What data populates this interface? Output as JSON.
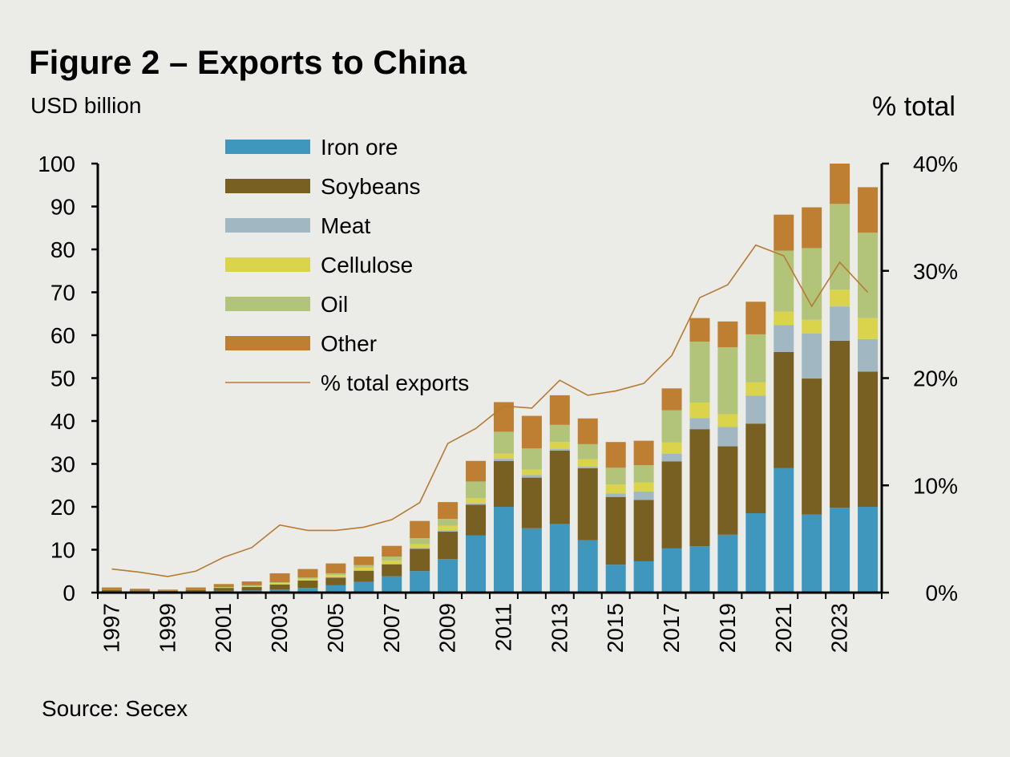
{
  "title": "Figure 2 – Exports to China",
  "source": "Source: Secex",
  "chart_data": {
    "type": "bar",
    "stacked": true,
    "title": "Figure 2 – Exports to China",
    "y_left_label": "USD billion",
    "y_right_label": "% total",
    "ylim": [
      0,
      100
    ],
    "y_ticks": [
      0,
      10,
      20,
      30,
      40,
      50,
      60,
      70,
      80,
      90,
      100
    ],
    "y2lim": [
      0,
      40
    ],
    "y2_ticks": [
      "0%",
      "10%",
      "20%",
      "30%",
      "40%"
    ],
    "y2_tick_values": [
      0,
      10,
      20,
      30,
      40
    ],
    "x": [
      1997,
      1998,
      1999,
      2000,
      2001,
      2002,
      2003,
      2004,
      2005,
      2006,
      2007,
      2008,
      2009,
      2010,
      2011,
      2012,
      2013,
      2014,
      2015,
      2016,
      2017,
      2018,
      2019,
      2020,
      2021,
      2022,
      2023,
      2024
    ],
    "x_tick_labels": [
      "1997",
      "1999",
      "2001",
      "2003",
      "2005",
      "2007",
      "2009",
      "2011",
      "2013",
      "2015",
      "2017",
      "2019",
      "2021",
      "2023"
    ],
    "legend_position": "top-left",
    "series": [
      {
        "name": "Iron ore",
        "color": "#3f97bd",
        "values": [
          0.3,
          0.3,
          0.2,
          0.3,
          0.4,
          0.5,
          0.7,
          1.1,
          1.7,
          2.5,
          3.8,
          5.0,
          7.8,
          13.3,
          20.0,
          15.0,
          16.0,
          12.2,
          6.5,
          7.3,
          10.3,
          10.8,
          13.5,
          18.5,
          29.0,
          18.2,
          19.8,
          20.0
        ]
      },
      {
        "name": "Soybeans",
        "color": "#776021",
        "values": [
          0.3,
          0.2,
          0.2,
          0.3,
          0.7,
          0.8,
          1.2,
          1.7,
          1.8,
          2.6,
          2.8,
          5.2,
          6.4,
          7.2,
          10.7,
          11.8,
          17.1,
          16.8,
          15.8,
          14.3,
          20.3,
          27.3,
          20.6,
          20.9,
          27.1,
          31.7,
          38.9,
          31.5
        ]
      },
      {
        "name": "Meat",
        "color": "#a1b8c3",
        "values": [
          0,
          0,
          0,
          0,
          0,
          0,
          0,
          0,
          0.1,
          0.1,
          0.1,
          0.2,
          0.3,
          0.3,
          0.5,
          0.6,
          0.4,
          0.4,
          0.8,
          2.0,
          1.8,
          2.6,
          4.5,
          6.5,
          6.3,
          10.5,
          8.0,
          7.6
        ]
      },
      {
        "name": "Cellulose",
        "color": "#dad34c",
        "values": [
          0,
          0,
          0,
          0,
          0.1,
          0.2,
          0.3,
          0.4,
          0.5,
          0.6,
          0.8,
          0.9,
          1.1,
          1.2,
          1.2,
          1.3,
          1.6,
          1.7,
          2.1,
          2.1,
          2.6,
          3.6,
          3.0,
          3.1,
          3.1,
          3.2,
          3.9,
          4.9
        ]
      },
      {
        "name": "Oil",
        "color": "#b1c47a",
        "values": [
          0,
          0,
          0,
          0,
          0.1,
          0.2,
          0.2,
          0.3,
          0.4,
          0.6,
          0.9,
          1.4,
          1.6,
          3.9,
          5.1,
          4.9,
          4.0,
          3.5,
          3.9,
          4.0,
          7.5,
          14.2,
          15.6,
          11.2,
          14.2,
          16.7,
          20.0,
          19.9
        ]
      },
      {
        "name": "Other",
        "color": "#be7f33",
        "values": [
          0.6,
          0.4,
          0.3,
          0.6,
          0.7,
          0.9,
          2.1,
          2.0,
          2.3,
          2.0,
          2.5,
          4.0,
          3.9,
          4.8,
          6.9,
          7.6,
          6.9,
          6.0,
          6.0,
          5.7,
          5.1,
          5.5,
          6.0,
          7.6,
          8.4,
          9.5,
          9.4,
          10.6
        ]
      }
    ],
    "line_series": {
      "name": "% total exports",
      "color": "#b77a33",
      "axis": "right",
      "values": [
        2.2,
        1.9,
        1.5,
        2.0,
        3.3,
        4.2,
        6.3,
        5.8,
        5.8,
        6.1,
        6.8,
        8.4,
        13.9,
        15.3,
        17.4,
        17.2,
        19.8,
        18.4,
        18.8,
        19.5,
        22.1,
        27.5,
        28.7,
        32.4,
        31.4,
        26.7,
        30.8,
        28.0
      ]
    }
  }
}
